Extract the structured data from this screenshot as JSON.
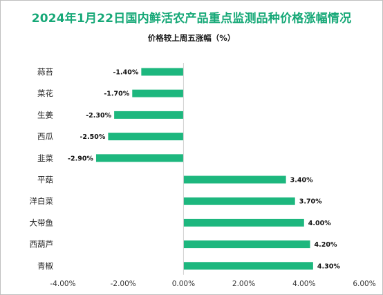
{
  "title": "2024年1月22日国内鲜活农产品重点监测品种价格涨幅情况",
  "subtitle": "价格较上周五涨幅（%）",
  "colors": {
    "title": "#16a877",
    "bar": "#1db77e"
  },
  "chart_data": {
    "type": "bar",
    "orientation": "horizontal",
    "title": "2024年1月22日国内鲜活农产品重点监测品种价格涨幅情况",
    "subtitle": "价格较上周五涨幅（%）",
    "categories": [
      "蒜苔",
      "菜花",
      "生姜",
      "西瓜",
      "韭菜",
      "平菇",
      "洋白菜",
      "大带鱼",
      "西葫芦",
      "青椒"
    ],
    "values": [
      -1.4,
      -1.7,
      -2.3,
      -2.5,
      -2.9,
      3.4,
      3.7,
      4.0,
      4.2,
      4.3
    ],
    "value_labels": [
      "-1.40%",
      "-1.70%",
      "-2.30%",
      "-2.50%",
      "-2.90%",
      "3.40%",
      "3.70%",
      "4.00%",
      "4.20%",
      "4.30%"
    ],
    "xlim": [
      -4,
      6
    ],
    "xticks": [
      -4,
      -2,
      0,
      2,
      4,
      6
    ],
    "xtick_labels": [
      "-4.00%",
      "-2.00%",
      "0.00%",
      "2.00%",
      "4.00%",
      "6.00%"
    ],
    "grid": false,
    "legend": "none"
  }
}
